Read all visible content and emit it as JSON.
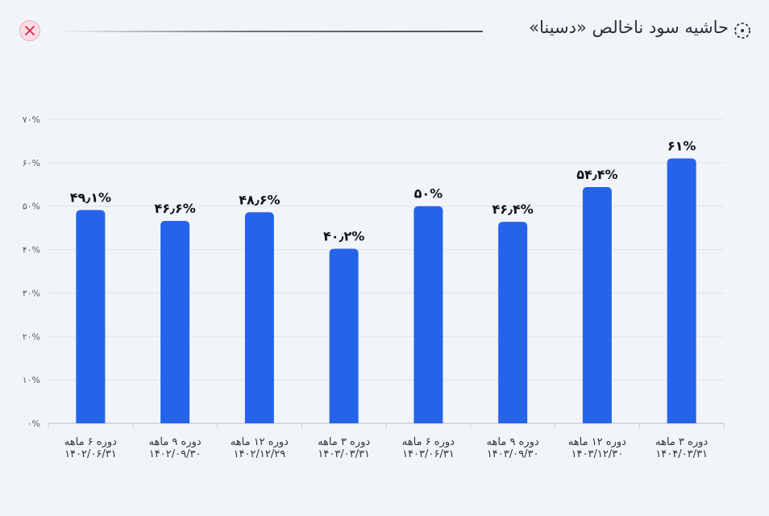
{
  "header": {
    "title": "حاشیه سود ناخالص «دسینا»",
    "title_icon": "dashed-circle-icon",
    "close_icon": "close-icon"
  },
  "colors": {
    "bar": "#2563eb",
    "close_bg": "#fadde3",
    "close_x": "#e11d48",
    "grid": "#dfe4ea",
    "axis": "#c9ced6",
    "tick_text": "#555b66"
  },
  "chart_data": {
    "type": "bar",
    "categories": [
      [
        "دوره ۶ ماهه",
        "۱۴۰۲/۰۶/۳۱"
      ],
      [
        "دوره ۹ ماهه",
        "۱۴۰۲/۰۹/۳۰"
      ],
      [
        "دوره ۱۲ ماهه",
        "۱۴۰۲/۱۲/۲۹"
      ],
      [
        "دوره ۳ ماهه",
        "۱۴۰۳/۰۳/۳۱"
      ],
      [
        "دوره ۶ ماهه",
        "۱۴۰۳/۰۶/۳۱"
      ],
      [
        "دوره ۹ ماهه",
        "۱۴۰۳/۰۹/۳۰"
      ],
      [
        "دوره ۱۲ ماهه",
        "۱۴۰۳/۱۲/۳۰"
      ],
      [
        "دوره ۳ ماهه",
        "۱۴۰۴/۰۳/۳۱"
      ]
    ],
    "values": [
      49.1,
      46.6,
      48.6,
      40.2,
      50,
      46.4,
      54.4,
      61
    ],
    "data_labels": [
      "۴۹٫۱%",
      "۴۶٫۶%",
      "۴۸٫۶%",
      "۴۰٫۲%",
      "۵۰%",
      "۴۶٫۴%",
      "۵۴٫۴%",
      "۶۱%"
    ],
    "ylim": [
      0,
      70
    ],
    "y_ticks": [
      0,
      10,
      20,
      30,
      40,
      50,
      60,
      70
    ],
    "y_tick_labels": [
      "۰%",
      "۱۰%",
      "۲۰%",
      "۳۰%",
      "۴۰%",
      "۵۰%",
      "۶۰%",
      "۷۰%"
    ],
    "grid": true,
    "legend": "none"
  }
}
